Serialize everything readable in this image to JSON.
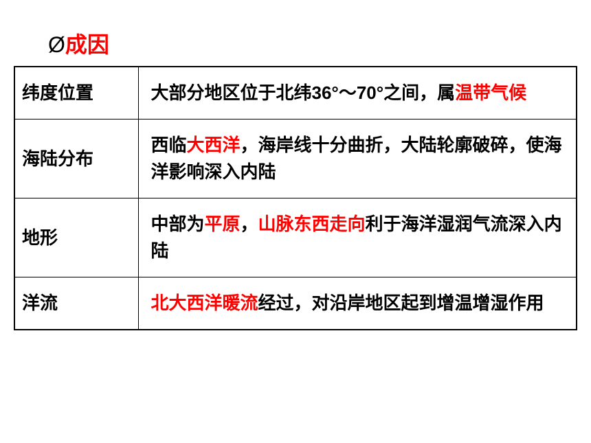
{
  "title": {
    "symbol": "Ø",
    "text": "成因",
    "symbol_color": "#000000",
    "text_color": "#ff0000",
    "fontsize": 32
  },
  "table": {
    "border_color": "#000000",
    "text_color": "#000000",
    "highlight_color": "#ff0000",
    "fontsize": 26,
    "rows": [
      {
        "label": "纬度位置",
        "content_parts": [
          {
            "text": "大部分地区位于北纬36°～70°之间，属",
            "red": false
          },
          {
            "text": "温带气候",
            "red": true
          }
        ]
      },
      {
        "label": "海陆分布",
        "content_parts": [
          {
            "text": "西临",
            "red": false
          },
          {
            "text": "大西洋",
            "red": true
          },
          {
            "text": "，海岸线十分曲折，大陆轮廓破碎，使海洋影响深入内陆",
            "red": false
          }
        ]
      },
      {
        "label": "地形",
        "content_parts": [
          {
            "text": "中部为",
            "red": false
          },
          {
            "text": "平原",
            "red": true
          },
          {
            "text": "，",
            "red": false
          },
          {
            "text": "山脉东西走向",
            "red": true
          },
          {
            "text": "利于海洋湿润气流深入内陆",
            "red": false
          }
        ]
      },
      {
        "label": "洋流",
        "content_parts": [
          {
            "text": "北大西洋暖流",
            "red": true
          },
          {
            "text": "经过，对沿岸地区起到增温增湿作用",
            "red": false
          }
        ]
      }
    ]
  }
}
